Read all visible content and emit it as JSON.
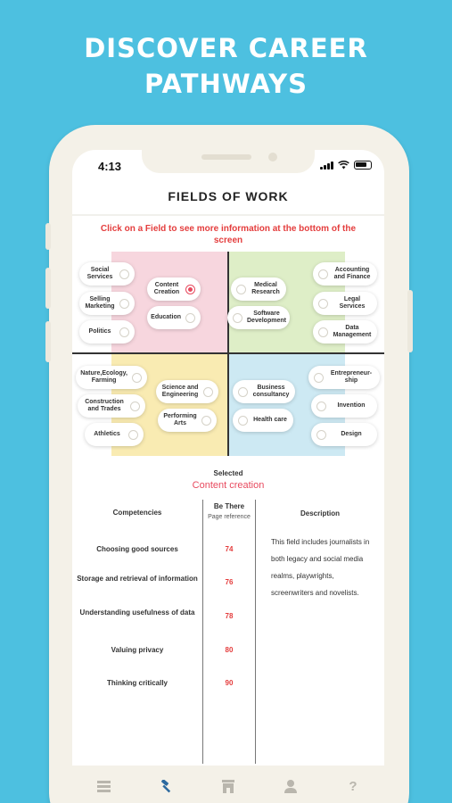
{
  "headline": {
    "line1": "DISCOVER CAREER",
    "line2": "PATHWAYS"
  },
  "status_bar": {
    "time": "4:13"
  },
  "page_title": "FIELDS OF WORK",
  "instruction": "Click on a Field to see more information at the bottom of the screen",
  "fields": {
    "social_services": "Social Services",
    "selling_marketing": "Selling Marketing",
    "politics": "Politics",
    "content_creation": "Content Creation",
    "education": "Education",
    "medical_research": "Medical Research",
    "software_development": "Software Development",
    "accounting_finance": "Accounting and Finance",
    "legal_services": "Legal Services",
    "data_management": "Data Management",
    "nature_ecology_farming": "Nature,Ecology, Farming",
    "construction_trades": "Construction and Trades",
    "athletics": "Athletics",
    "science_engineering": "Science and Engineering",
    "performing_arts": "Performing Arts",
    "business_consultancy": "Business consultancy",
    "health_care": "Health care",
    "entrepreneurship": "Entrepreneur-ship",
    "invention": "Invention",
    "design": "Design"
  },
  "selected_field": "content_creation",
  "selection": {
    "label": "Selected",
    "value": "Content creation"
  },
  "table": {
    "headers": {
      "competencies": "Competencies",
      "be_there": "Be There",
      "page_ref": "Page reference",
      "description": "Description"
    },
    "rows": [
      {
        "competency": "Choosing good sources",
        "page": "74"
      },
      {
        "competency": "Storage and retrieval of information",
        "page": "76"
      },
      {
        "competency": "Understanding usefulness of data",
        "page": "78"
      },
      {
        "competency": "Valuing privacy",
        "page": "80"
      },
      {
        "competency": "Thinking critically",
        "page": "90"
      }
    ],
    "description": "This field includes journalists in both legacy and social media realms, playwrights, screenwriters and novelists."
  },
  "tabbar": {
    "tabs": [
      {
        "icon": "list-icon",
        "active": false
      },
      {
        "icon": "hammer-icon",
        "active": true
      },
      {
        "icon": "building-icon",
        "active": false
      },
      {
        "icon": "person-icon",
        "active": false
      },
      {
        "icon": "help-icon",
        "active": false
      }
    ]
  },
  "colors": {
    "background": "#4dc0e0",
    "accent": "#e84a5f",
    "instruction": "#e43d3d",
    "quad_red": "#f7d6de",
    "quad_green": "#deeec7",
    "quad_yellow": "#f9ebb2",
    "quad_blue": "#cde9f3"
  }
}
